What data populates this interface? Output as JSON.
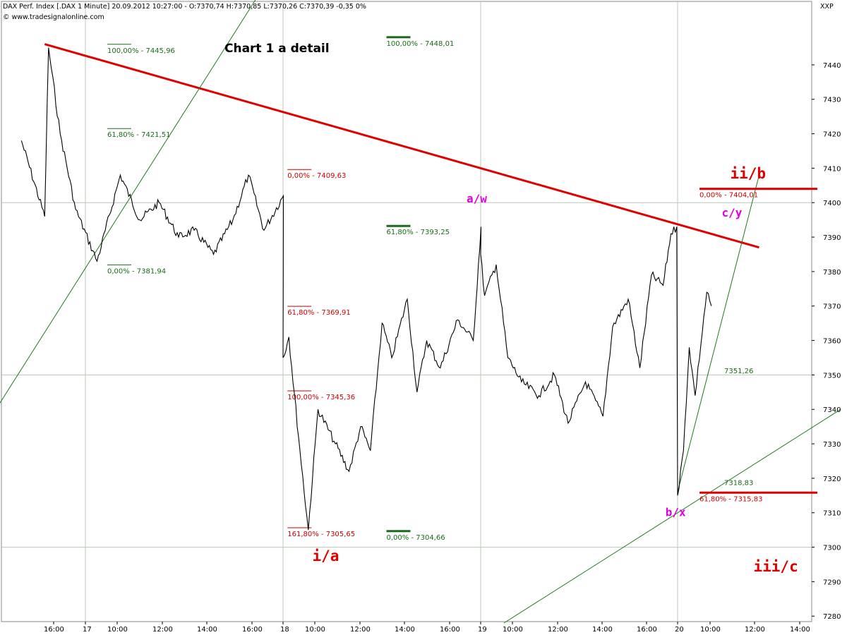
{
  "header": {
    "title": "DAX Perf. Index [.DAX 1 Minute] 20.09.2012 10:27:00 - O:7370,74 H:7370,85 L:7370,26 C:7370,39 -0,35 0%",
    "website": "© www.tradesignalonline.com",
    "xxp": "XXP",
    "caption": "Chart 1 a detail"
  },
  "colors": {
    "price": "#000000",
    "grid": "#b8c8b8",
    "trendline_red": "#e00000",
    "channel_green": "#1e7a1e",
    "fib_green": "#1a6b1a",
    "fib_red": "#cc0000",
    "wave_red": "#e00000",
    "wave_magenta": "#e000e0"
  },
  "chart_data": {
    "type": "line",
    "title": "Chart 1 a detail",
    "ylim": [
      7278,
      7458
    ],
    "yticks": [
      7280,
      7290,
      7300,
      7310,
      7320,
      7330,
      7340,
      7350,
      7360,
      7370,
      7380,
      7390,
      7400,
      7410,
      7420,
      7430,
      7440
    ],
    "xticks": [
      "16:00",
      "17",
      "10:00",
      "12:00",
      "14:00",
      "16:00",
      "18",
      "10:00",
      "12:00",
      "14:00",
      "16:00",
      "19",
      "10:00",
      "12:00",
      "14:00",
      "16:00",
      "20",
      "10:00",
      "12:00",
      "14:00"
    ],
    "series": [
      {
        "color": "#000000",
        "x": [
          "16.09 15:00",
          "16.09 16:00",
          "16.09 16:10",
          "16.09 16:40",
          "16.09 17:20",
          "17.09 09:30",
          "17.09 10:30",
          "17.09 11:20",
          "17.09 12:10",
          "17.09 13:00",
          "17.09 13:40",
          "17.09 14:30",
          "17.09 15:20",
          "17.09 16:00",
          "17.09 16:40",
          "17.09 17:30",
          "18.09 09:00",
          "18.09 09:15",
          "18.09 09:40",
          "18.09 10:05",
          "18.09 10:30",
          "18.09 11:15",
          "18.09 11:50",
          "18.09 12:20",
          "18.09 12:45",
          "18.09 13:15",
          "18.09 13:40",
          "18.09 14:20",
          "18.09 14:45",
          "18.09 15:10",
          "18.09 15:45",
          "18.09 16:30",
          "18.09 17:10",
          "18.09 17:30",
          "19.09 09:00",
          "19.09 09:10",
          "19.09 09:40",
          "19.09 10:10",
          "19.09 10:45",
          "19.09 11:30",
          "19.09 12:10",
          "19.09 12:45",
          "19.09 13:30",
          "19.09 14:15",
          "19.09 14:40",
          "19.09 15:20",
          "19.09 15:50",
          "19.09 16:20",
          "19.09 16:50",
          "19.09 17:10",
          "19.09 17:25",
          "20.09 09:00",
          "20.09 09:15",
          "20.09 09:30",
          "20.09 09:45",
          "20.09 10:15",
          "20.09 10:27"
        ],
        "y": [
          7418,
          7396,
          7445,
          7420,
          7398,
          7383,
          7408,
          7395,
          7400,
          7390,
          7392,
          7385,
          7395,
          7408,
          7392,
          7402,
          7355,
          7361,
          7332,
          7305,
          7340,
          7330,
          7322,
          7335,
          7328,
          7365,
          7355,
          7372,
          7345,
          7360,
          7352,
          7366,
          7360,
          7393,
          7385,
          7373,
          7382,
          7355,
          7348,
          7344,
          7350,
          7336,
          7348,
          7338,
          7364,
          7372,
          7352,
          7379,
          7376,
          7391,
          7393,
          7315,
          7328,
          7358,
          7344,
          7374,
          7370
        ]
      }
    ],
    "trendlines": [
      {
        "name": "red_resistance",
        "from": [
          "16.09 16:00",
          7446
        ],
        "to": [
          "20.09 12:30",
          7387
        ]
      },
      {
        "name": "green_upper_channel",
        "from": [
          "16.09 12:30",
          7325
        ],
        "to": [
          "19.09 00:00",
          7466
        ]
      },
      {
        "name": "green_lower_channel",
        "from": [
          "19.09 10:00",
          7278
        ],
        "to": [
          "20.09 16:00",
          7340
        ]
      },
      {
        "name": "green_steep",
        "from": [
          "20.09 09:00",
          7316
        ],
        "to": [
          "20.09 12:30",
          7408
        ]
      }
    ],
    "fib_levels": [
      {
        "label": "100,00% - 7445,96",
        "value": 7445.96,
        "color": "green",
        "anchor": "17.09 10:00"
      },
      {
        "label": "61,80% - 7421,51",
        "value": 7421.51,
        "color": "green",
        "anchor": "17.09 10:00"
      },
      {
        "label": "0,00% - 7381,94",
        "value": 7381.94,
        "color": "green",
        "anchor": "17.09 10:00"
      },
      {
        "label": "0,00% - 7409,63",
        "value": 7409.63,
        "color": "red",
        "anchor": "18.09 09:15"
      },
      {
        "label": "61,80% - 7369,91",
        "value": 7369.91,
        "color": "red",
        "anchor": "18.09 09:15"
      },
      {
        "label": "100,00% - 7345,36",
        "value": 7345.36,
        "color": "red",
        "anchor": "18.09 09:15"
      },
      {
        "label": "161,80% - 7305,65",
        "value": 7305.65,
        "color": "red",
        "anchor": "18.09 09:15"
      },
      {
        "label": "100,00% - 7448,01",
        "value": 7448.01,
        "color": "green",
        "anchor": "18.09 13:30"
      },
      {
        "label": "61,80% - 7393,25",
        "value": 7393.25,
        "color": "green",
        "anchor": "18.09 13:30"
      },
      {
        "label": "0,00% - 7304,66",
        "value": 7304.66,
        "color": "green",
        "anchor": "18.09 13:30"
      },
      {
        "label": "0,00% - 7404,01",
        "value": 7404.01,
        "color": "red",
        "anchor": "20.09 10:00",
        "thick_line": true
      },
      {
        "label": "61,80% - 7315,83",
        "value": 7315.83,
        "color": "red",
        "anchor": "20.09 10:00",
        "thick_line": true
      }
    ],
    "price_labels": [
      {
        "label": "7318,83",
        "value": 7318.83,
        "anchor": "20.09 10:20"
      },
      {
        "label": "7351,26",
        "value": 7351.26,
        "anchor": "20.09 10:20"
      }
    ],
    "wave_labels": [
      {
        "text": "i/a",
        "color": "red",
        "x": "18.09 10:30",
        "y": 7296
      },
      {
        "text": "a/w",
        "color": "magenta",
        "x": "19.09 09:00",
        "y": 7400
      },
      {
        "text": "b/x",
        "color": "magenta",
        "x": "20.09 09:05",
        "y": 7309
      },
      {
        "text": "c/y",
        "color": "magenta",
        "x": "20.09 11:30",
        "y": 7396
      },
      {
        "text": "ii/b",
        "color": "red",
        "x": "20.09 11:30",
        "y": 7407
      },
      {
        "text": "iii/c",
        "color": "red",
        "x": "20.09 12:30",
        "y": 7293
      }
    ]
  }
}
